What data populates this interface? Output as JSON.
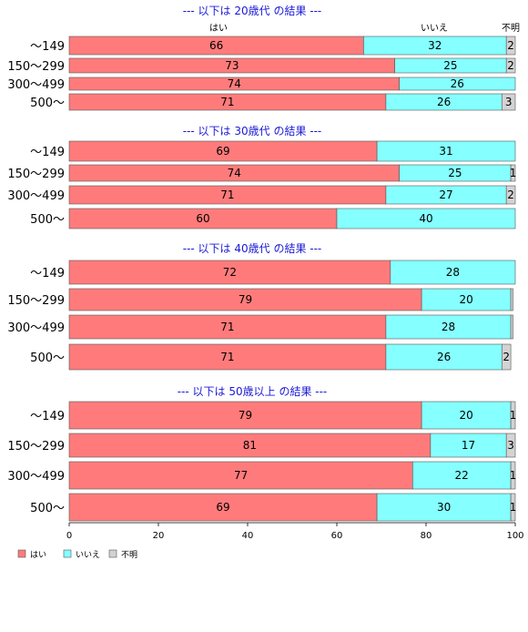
{
  "chart_data": {
    "type": "bar",
    "orientation": "horizontal",
    "stacked": true,
    "column_headers": [
      "はい",
      "いいえ",
      "不明"
    ],
    "series_names": [
      "はい",
      "いいえ",
      "不明"
    ],
    "colors": [
      "#ff7b7b",
      "#85ffff",
      "#d3d3d3"
    ],
    "xlim": [
      0,
      100
    ],
    "xticks": [
      0,
      20,
      40,
      60,
      80,
      100
    ],
    "grid": false,
    "legend_position": "bottom-left",
    "groups": [
      {
        "title": "--- 以下は 20歳代 の結果 ---",
        "categories": [
          "〜149",
          "150〜299",
          "300〜499",
          "500〜"
        ],
        "values": [
          [
            66,
            32,
            2
          ],
          [
            73,
            25,
            2
          ],
          [
            74,
            26,
            0
          ],
          [
            71,
            26,
            3
          ]
        ]
      },
      {
        "title": "--- 以下は 30歳代 の結果 ---",
        "categories": [
          "〜149",
          "150〜299",
          "300〜499",
          "500〜"
        ],
        "values": [
          [
            69,
            31,
            0
          ],
          [
            74,
            25,
            1
          ],
          [
            71,
            27,
            2
          ],
          [
            60,
            40,
            0
          ]
        ]
      },
      {
        "title": "--- 以下は 40歳代 の結果 ---",
        "categories": [
          "〜149",
          "150〜299",
          "300〜499",
          "500〜"
        ],
        "values": [
          [
            72,
            28,
            0
          ],
          [
            79,
            20,
            0.5
          ],
          [
            71,
            28,
            0.5
          ],
          [
            71,
            26,
            2
          ]
        ]
      },
      {
        "title": "--- 以下は 50歳以上 の結果 ---",
        "categories": [
          "〜149",
          "150〜299",
          "300〜499",
          "500〜"
        ],
        "values": [
          [
            79,
            20,
            1
          ],
          [
            81,
            17,
            3
          ],
          [
            77,
            22,
            1
          ],
          [
            69,
            30,
            1
          ]
        ]
      }
    ]
  }
}
